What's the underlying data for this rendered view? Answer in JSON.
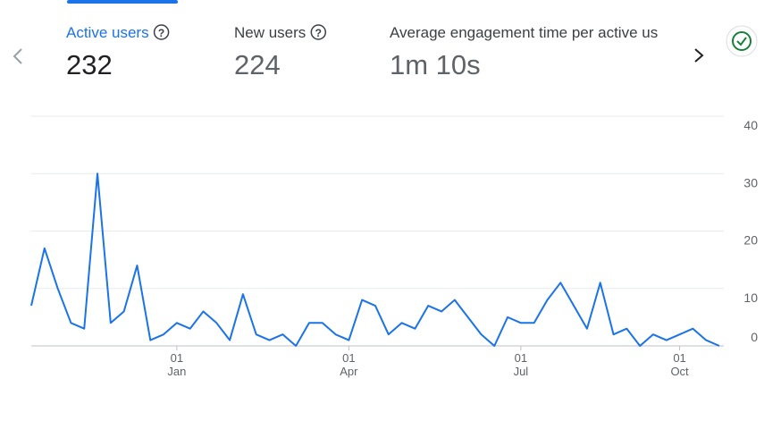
{
  "tabs": [
    {
      "label": "Active users",
      "value": "232"
    },
    {
      "label": "New users",
      "value": "224"
    },
    {
      "label": "Average engagement time per active us",
      "value": "1m 10s"
    }
  ],
  "chart_data": {
    "type": "line",
    "categories": [
      null,
      null,
      null,
      null,
      null,
      null,
      null,
      null,
      null,
      null,
      null,
      "01 Jan",
      null,
      null,
      null,
      null,
      null,
      null,
      null,
      null,
      null,
      null,
      null,
      null,
      "01 Apr",
      null,
      null,
      null,
      null,
      null,
      null,
      null,
      null,
      null,
      null,
      null,
      null,
      "01 Jul",
      null,
      null,
      null,
      null,
      null,
      null,
      null,
      null,
      null,
      null,
      null,
      "01 Oct",
      null,
      null,
      null
    ],
    "series": [
      {
        "name": "Active users",
        "color": "#1a73e8",
        "values": [
          7,
          17,
          10,
          4,
          3,
          30,
          4,
          6,
          14,
          1,
          2,
          4,
          3,
          6,
          4,
          1,
          9,
          2,
          1,
          2,
          0,
          4,
          4,
          2,
          1,
          8,
          7,
          2,
          4,
          3,
          7,
          6,
          8,
          5,
          2,
          0,
          5,
          4,
          4,
          8,
          11,
          7,
          3,
          11,
          2,
          3,
          0,
          2,
          1,
          2,
          3,
          1,
          0
        ]
      }
    ],
    "ylim": [
      0,
      40
    ],
    "yticks": [
      0,
      10,
      20,
      30,
      40
    ],
    "grid": true
  }
}
